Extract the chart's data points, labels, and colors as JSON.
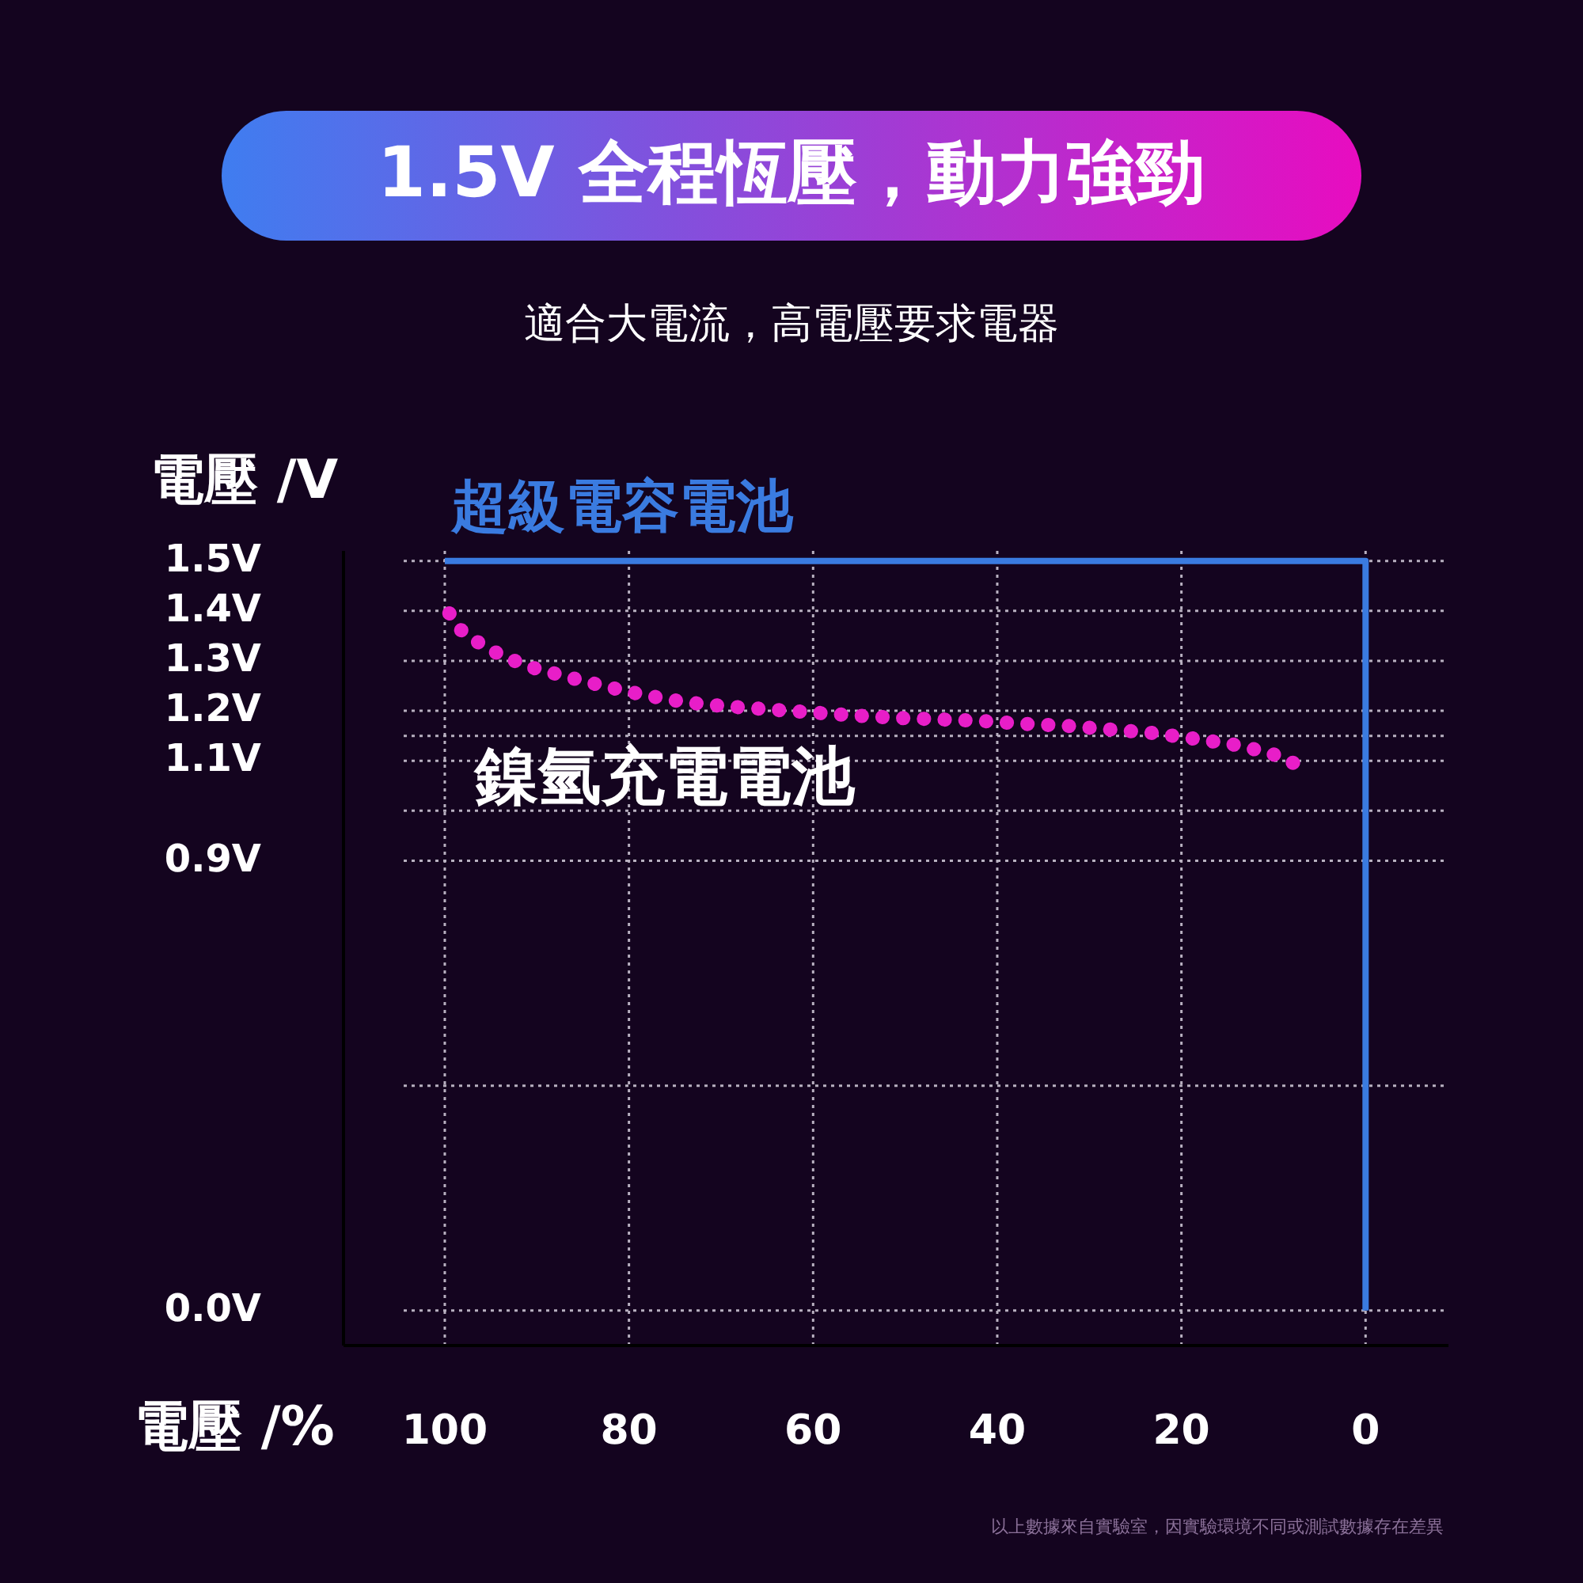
{
  "chart_data": {
    "type": "line",
    "title": "1.5V 全程恆壓，動力強勁",
    "subtitle": "適合大電流，高電壓要求電器",
    "ylabel": "電壓 /V",
    "xlabel": "電壓 /%",
    "xlim": [
      111,
      -9
    ],
    "xticks": [
      100,
      80,
      60,
      40,
      20,
      0
    ],
    "ylim": [
      -0.07,
      1.52
    ],
    "yticks": [
      {
        "value": 1.5,
        "label": "1.5V"
      },
      {
        "value": 1.4,
        "label": "1.4V"
      },
      {
        "value": 1.3,
        "label": "1.3V"
      },
      {
        "value": 1.2,
        "label": "1.2V"
      },
      {
        "value": 1.15,
        "label": null
      },
      {
        "value": 1.1,
        "label": "1.1V"
      },
      {
        "value": 1.0,
        "label": null
      },
      {
        "value": 0.9,
        "label": "0.9V"
      },
      {
        "value": 0.45,
        "label": null
      },
      {
        "value": 0.0,
        "label": "0.0V"
      }
    ],
    "grid": true,
    "series": [
      {
        "name": "超級電容電池",
        "color": "#3a7be0",
        "line_style": "solid",
        "x": [
          100,
          0,
          0
        ],
        "values": [
          1.5,
          1.5,
          0.0
        ]
      },
      {
        "name": "鎳氫充電電池",
        "color": "#e81ec8",
        "line_style": "dotted",
        "x": [
          99.5,
          98.5,
          96.3,
          93.7,
          90.4,
          86.3,
          82.4,
          78.2,
          73.8,
          69.4,
          64.9,
          60.3,
          55.8,
          51.2,
          46.5,
          42.0,
          37.1,
          32.5,
          28.0,
          23.3,
          18.9,
          14.5,
          10.4,
          6.5
        ],
        "values": [
          1.395,
          1.365,
          1.336,
          1.309,
          1.286,
          1.266,
          1.248,
          1.231,
          1.217,
          1.209,
          1.203,
          1.197,
          1.191,
          1.186,
          1.183,
          1.18,
          1.174,
          1.17,
          1.163,
          1.156,
          1.145,
          1.133,
          1.116,
          1.085
        ]
      }
    ],
    "annotations": [
      "以上數據來自實驗室，因實驗環境不同或測試數據存在差異"
    ]
  }
}
